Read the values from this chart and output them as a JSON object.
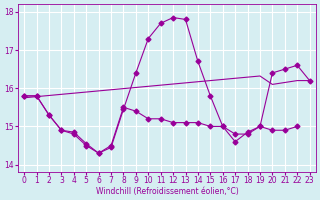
{
  "xlabel": "Windchill (Refroidissement éolien,°C)",
  "bg_color": "#d6eef2",
  "line_color": "#990099",
  "grid_color": "#ffffff",
  "ylim": [
    13.8,
    18.2
  ],
  "xlim": [
    -0.5,
    23.5
  ],
  "yticks": [
    14,
    15,
    16,
    17,
    18
  ],
  "xticks": [
    0,
    1,
    2,
    3,
    4,
    5,
    6,
    7,
    8,
    9,
    10,
    11,
    12,
    13,
    14,
    15,
    16,
    17,
    18,
    19,
    20,
    21,
    22,
    23
  ],
  "series1_x": [
    0,
    1,
    2,
    3,
    4,
    5,
    6,
    7,
    8,
    9,
    10,
    11,
    12,
    13,
    14,
    15,
    16,
    17,
    18,
    19,
    20,
    21,
    22
  ],
  "series1_y": [
    15.8,
    15.8,
    15.3,
    14.9,
    14.8,
    14.5,
    14.3,
    14.5,
    15.5,
    15.4,
    15.2,
    15.2,
    15.1,
    15.1,
    15.1,
    15.0,
    15.0,
    14.8,
    14.8,
    15.0,
    14.9,
    14.9,
    15.0
  ],
  "series2_x": [
    0,
    1,
    2,
    3,
    4,
    5,
    6,
    7,
    8,
    9,
    10,
    11,
    12,
    13,
    14,
    15,
    16,
    17,
    18,
    19,
    20,
    21,
    22,
    23
  ],
  "series2_y": [
    15.8,
    15.8,
    15.3,
    14.9,
    14.85,
    14.55,
    14.3,
    14.45,
    15.45,
    16.4,
    17.3,
    17.7,
    17.85,
    17.8,
    16.7,
    15.8,
    15.0,
    14.6,
    14.85,
    15.0,
    16.4,
    16.5,
    16.6,
    16.2
  ],
  "series3_x": [
    0,
    1,
    2,
    3,
    4,
    5,
    6,
    7,
    8,
    9,
    10,
    11,
    12,
    13,
    14,
    15,
    16,
    17,
    18,
    19,
    20,
    21,
    22,
    23
  ],
  "series3_y": [
    15.75,
    15.78,
    15.81,
    15.84,
    15.87,
    15.9,
    15.93,
    15.96,
    15.99,
    16.02,
    16.05,
    16.08,
    16.11,
    16.14,
    16.17,
    16.2,
    16.23,
    16.26,
    16.29,
    16.32,
    16.1,
    16.15,
    16.2,
    16.2
  ]
}
